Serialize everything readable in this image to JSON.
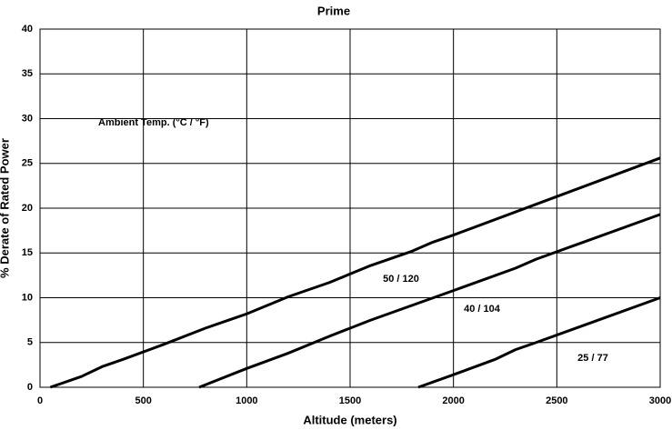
{
  "chart_data": {
    "type": "line",
    "title": "Prime",
    "xlabel": "Altitude (meters)",
    "ylabel": "% Derate of Rated Power",
    "annotations": [
      "Ambient Temp.  (°C / °F)"
    ],
    "xlim": [
      0,
      3000
    ],
    "xticks": [
      0,
      500,
      1000,
      1500,
      2000,
      2500,
      3000
    ],
    "ylim": [
      0,
      40
    ],
    "yticks": [
      0,
      5,
      10,
      15,
      20,
      25,
      30,
      35,
      40
    ],
    "grid": true,
    "series": [
      {
        "name": "50 / 120",
        "color": "#000000",
        "x": [
          50,
          200,
          300,
          400,
          600,
          800,
          1000,
          1200,
          1400,
          1600,
          1800,
          1900,
          2000,
          2500,
          3000
        ],
        "values": [
          0,
          1.2,
          2.3,
          3.1,
          4.8,
          6.6,
          8.2,
          10.1,
          11.7,
          13.6,
          15.2,
          16.2,
          17.0,
          21.3,
          25.6
        ]
      },
      {
        "name": "40 / 104",
        "color": "#000000",
        "x": [
          770,
          1000,
          1200,
          1400,
          1600,
          2000,
          2300,
          2400,
          3000
        ],
        "values": [
          0,
          2.1,
          3.8,
          5.7,
          7.5,
          10.8,
          13.3,
          14.3,
          19.3
        ]
      },
      {
        "name": "25 / 77",
        "color": "#000000",
        "x": [
          1830,
          2000,
          2200,
          2300,
          2400,
          3000
        ],
        "values": [
          0,
          1.4,
          3.1,
          4.2,
          5.0,
          10.0
        ]
      }
    ]
  }
}
